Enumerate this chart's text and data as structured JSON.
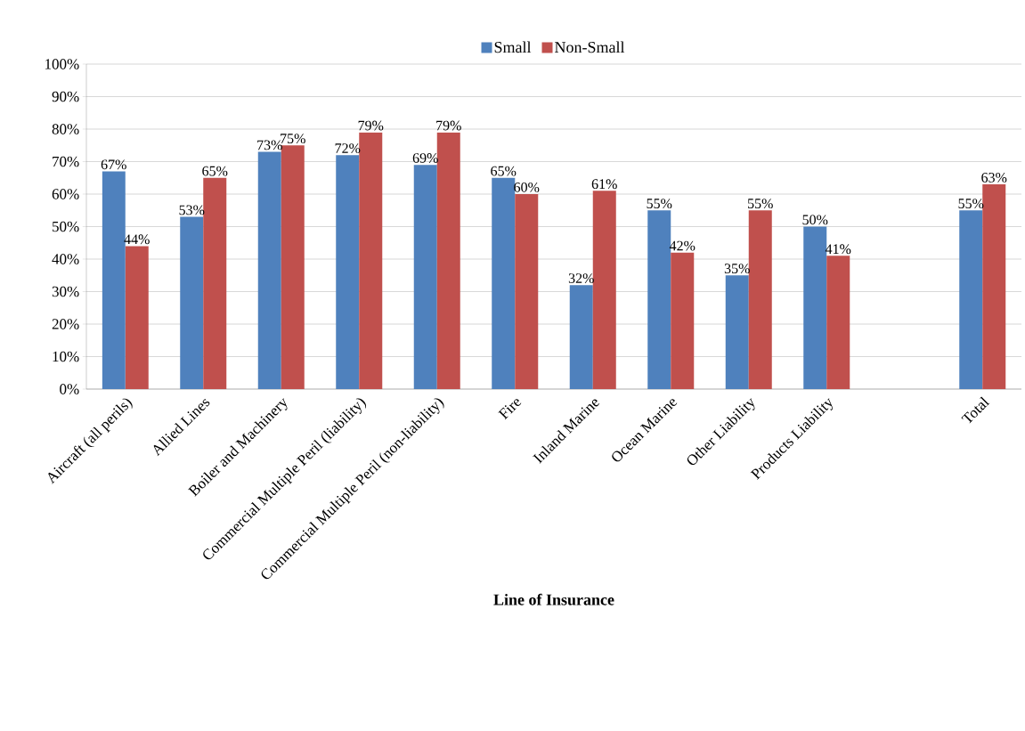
{
  "chart_data": {
    "type": "bar",
    "xlabel": "Line of Insurance",
    "categories": [
      "Aircraft (all perils)",
      "Allied Lines",
      "Boiler and Machinery",
      "Commercial Multiple Peril (liability)",
      "Commercial Multiple Peril (non-liability)",
      "Fire",
      "Inland Marine",
      "Ocean Marine",
      "Other Liability",
      "Products Liability",
      null,
      "Total"
    ],
    "series": [
      {
        "name": "Small",
        "color": "#4f81bd",
        "values": [
          67,
          53,
          73,
          72,
          69,
          65,
          32,
          55,
          35,
          50,
          null,
          55
        ],
        "value_labels": [
          "67%",
          "53%",
          "73%",
          "72%",
          "69%",
          "65%",
          "32%",
          "55%",
          "35%",
          "50%",
          null,
          "55%"
        ]
      },
      {
        "name": "Non-Small",
        "color": "#c0504d",
        "values": [
          44,
          65,
          75,
          79,
          79,
          60,
          61,
          42,
          55,
          41,
          null,
          63
        ],
        "value_labels": [
          "44%",
          "65%",
          "75%",
          "79%",
          "79%",
          "60%",
          "61%",
          "42%",
          "55%",
          "41%",
          null,
          "63%"
        ]
      }
    ],
    "ylim": [
      0,
      100
    ],
    "yticks": [
      {
        "value": 0,
        "label": "0%"
      },
      {
        "value": 10,
        "label": "10%"
      },
      {
        "value": 20,
        "label": "20%"
      },
      {
        "value": 30,
        "label": "30%"
      },
      {
        "value": 40,
        "label": "40%"
      },
      {
        "value": 50,
        "label": "50%"
      },
      {
        "value": 60,
        "label": "60%"
      },
      {
        "value": 70,
        "label": "70%"
      },
      {
        "value": 80,
        "label": "80%"
      },
      {
        "value": 90,
        "label": "90%"
      },
      {
        "value": 100,
        "label": "100%"
      }
    ],
    "grid": "y",
    "legend": "top"
  }
}
